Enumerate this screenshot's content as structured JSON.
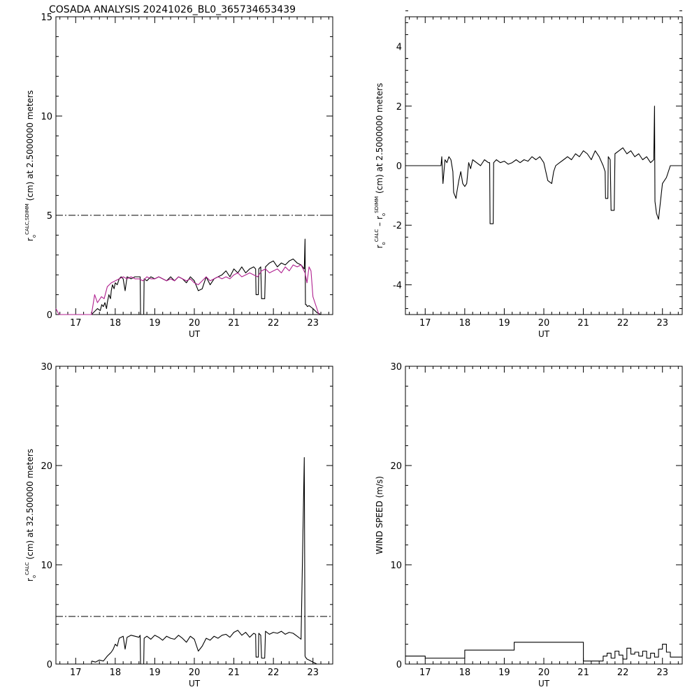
{
  "title": "COSADA ANALYSIS 20241026_BL0_365734653439",
  "chart_data": [
    {
      "type": "line",
      "panel": "top-left",
      "xlabel": "UT",
      "ylabel_parts": {
        "r": "r",
        "sub": "o",
        "sup": "CALC,SDIMM",
        "rest": " (cm)  at  2.5000000 meters"
      },
      "xlim": [
        16.5,
        23.5
      ],
      "ylim": [
        0,
        15
      ],
      "xticks": [
        "17",
        "18",
        "19",
        "20",
        "21",
        "22",
        "23"
      ],
      "yticks": [
        "0",
        "5",
        "10",
        "15"
      ],
      "reference_line": {
        "y": 5,
        "style": "dash-dot"
      },
      "series": [
        {
          "color": "#000000",
          "x": [
            17.4,
            17.55,
            17.62,
            17.66,
            17.7,
            17.74,
            17.78,
            17.8,
            17.84,
            17.88,
            17.9,
            17.93,
            17.97,
            18.0,
            18.05,
            18.1,
            18.15,
            18.2,
            18.25,
            18.3,
            18.4,
            18.5,
            18.6,
            18.63,
            18.64,
            18.72,
            18.73,
            18.8,
            18.9,
            19.0,
            19.1,
            19.2,
            19.3,
            19.4,
            19.5,
            19.6,
            19.7,
            19.8,
            19.9,
            20.0,
            20.1,
            20.2,
            20.25,
            20.3,
            20.4,
            20.5,
            20.6,
            20.7,
            20.8,
            20.9,
            21.0,
            21.1,
            21.2,
            21.3,
            21.4,
            21.5,
            21.55,
            21.56,
            21.62,
            21.63,
            21.68,
            21.7,
            21.78,
            21.8,
            21.9,
            22.0,
            22.1,
            22.2,
            22.3,
            22.4,
            22.5,
            22.6,
            22.7,
            22.78,
            22.8,
            22.81,
            22.83,
            22.86,
            22.9,
            23.0,
            23.1,
            23.2
          ],
          "y": [
            0.0,
            0.3,
            0.2,
            0.5,
            0.4,
            0.6,
            0.3,
            0.6,
            1.0,
            0.8,
            1.2,
            1.5,
            1.3,
            1.6,
            1.5,
            1.8,
            1.9,
            1.8,
            1.2,
            1.9,
            1.8,
            1.9,
            1.9,
            1.9,
            0.0,
            0.0,
            1.8,
            1.7,
            1.9,
            1.8,
            1.9,
            1.8,
            1.7,
            1.9,
            1.7,
            1.9,
            1.8,
            1.6,
            1.9,
            1.7,
            1.2,
            1.3,
            1.6,
            1.9,
            1.5,
            1.8,
            1.9,
            2.0,
            2.2,
            1.9,
            2.3,
            2.1,
            2.4,
            2.1,
            2.3,
            2.4,
            2.3,
            1.0,
            1.0,
            2.3,
            2.4,
            0.8,
            0.8,
            2.4,
            2.6,
            2.7,
            2.4,
            2.6,
            2.5,
            2.7,
            2.8,
            2.6,
            2.5,
            2.3,
            3.8,
            0.5,
            0.5,
            0.4,
            0.45,
            0.3,
            0.1,
            0.0
          ]
        },
        {
          "color": "#b0208f",
          "x": [
            16.5,
            16.58,
            17.4,
            17.48,
            17.55,
            17.65,
            17.72,
            17.8,
            17.85,
            17.9,
            18.0,
            18.1,
            18.2,
            18.3,
            18.4,
            18.5,
            18.6,
            18.7,
            18.8,
            18.9,
            19.0,
            19.1,
            19.2,
            19.3,
            19.4,
            19.5,
            19.6,
            19.7,
            19.8,
            19.9,
            20.0,
            20.1,
            20.2,
            20.3,
            20.4,
            20.5,
            20.6,
            20.7,
            20.8,
            20.9,
            21.0,
            21.1,
            21.2,
            21.3,
            21.4,
            21.5,
            21.6,
            21.7,
            21.8,
            21.9,
            22.0,
            22.1,
            22.2,
            22.3,
            22.4,
            22.5,
            22.6,
            22.7,
            22.8,
            22.85,
            22.9,
            22.95,
            23.0,
            23.05,
            23.1,
            23.15
          ],
          "y": [
            0.3,
            0.0,
            0.0,
            1.0,
            0.6,
            0.9,
            0.8,
            1.4,
            1.5,
            1.6,
            1.7,
            1.8,
            1.9,
            1.8,
            1.9,
            1.8,
            1.8,
            1.7,
            1.9,
            1.8,
            1.8,
            1.9,
            1.8,
            1.7,
            1.8,
            1.7,
            1.9,
            1.8,
            1.7,
            1.8,
            1.6,
            1.5,
            1.7,
            1.9,
            1.7,
            1.8,
            1.9,
            1.8,
            1.9,
            1.8,
            2.0,
            2.1,
            1.9,
            2.0,
            2.1,
            2.0,
            1.9,
            2.2,
            2.3,
            2.1,
            2.2,
            2.3,
            2.1,
            2.4,
            2.2,
            2.5,
            2.4,
            2.5,
            2.1,
            1.6,
            2.4,
            2.2,
            0.9,
            0.6,
            0.3,
            0.0
          ]
        }
      ]
    },
    {
      "type": "line",
      "panel": "top-right",
      "xlabel": "UT",
      "ylabel_parts": {
        "r1": "r",
        "sub1": "o",
        "sup1": "CALC",
        "mid": " – r",
        "sub2": "o",
        "sup2": "SDIMM",
        "rest": " (cm)  at  2.5000000 meters"
      },
      "xlim": [
        16.5,
        23.5
      ],
      "ylim": [
        -5,
        5
      ],
      "xticks": [
        "17",
        "18",
        "19",
        "20",
        "21",
        "22",
        "23"
      ],
      "yticks": [
        "-4",
        "-2",
        "0",
        "2",
        "4"
      ],
      "series": [
        {
          "color": "#000000",
          "x": [
            16.5,
            17.4,
            17.42,
            17.45,
            17.5,
            17.55,
            17.6,
            17.65,
            17.7,
            17.72,
            17.78,
            17.8,
            17.85,
            17.9,
            17.95,
            18.0,
            18.05,
            18.1,
            18.15,
            18.2,
            18.3,
            18.4,
            18.5,
            18.6,
            18.63,
            18.64,
            18.72,
            18.73,
            18.8,
            18.9,
            19.0,
            19.1,
            19.2,
            19.3,
            19.4,
            19.5,
            19.6,
            19.7,
            19.8,
            19.9,
            20.0,
            20.1,
            20.2,
            20.25,
            20.3,
            20.4,
            20.5,
            20.6,
            20.7,
            20.8,
            20.9,
            21.0,
            21.1,
            21.2,
            21.3,
            21.4,
            21.5,
            21.55,
            21.56,
            21.62,
            21.63,
            21.68,
            21.7,
            21.78,
            21.8,
            21.9,
            22.0,
            22.1,
            22.2,
            22.3,
            22.4,
            22.5,
            22.6,
            22.7,
            22.78,
            22.8,
            22.81,
            22.85,
            22.9,
            22.95,
            23.0,
            23.1,
            23.2,
            23.5
          ],
          "y": [
            0.0,
            0.0,
            0.3,
            -0.6,
            0.2,
            0.1,
            0.3,
            0.2,
            -0.2,
            -0.9,
            -1.1,
            -0.9,
            -0.5,
            -0.2,
            -0.6,
            -0.7,
            -0.6,
            0.1,
            -0.1,
            0.2,
            0.1,
            0.0,
            0.2,
            0.1,
            0.1,
            -1.95,
            -1.95,
            0.1,
            0.2,
            0.1,
            0.15,
            0.05,
            0.1,
            0.2,
            0.1,
            0.2,
            0.15,
            0.3,
            0.2,
            0.3,
            0.1,
            -0.5,
            -0.6,
            -0.2,
            0.0,
            0.1,
            0.2,
            0.3,
            0.2,
            0.4,
            0.3,
            0.5,
            0.4,
            0.2,
            0.5,
            0.3,
            0.0,
            -0.2,
            -1.1,
            -1.1,
            0.3,
            0.2,
            -1.5,
            -1.5,
            0.4,
            0.5,
            0.6,
            0.4,
            0.5,
            0.3,
            0.4,
            0.2,
            0.3,
            0.1,
            0.2,
            2.0,
            -1.2,
            -1.6,
            -1.8,
            -1.2,
            -0.6,
            -0.4,
            0.0,
            0.0
          ]
        }
      ]
    },
    {
      "type": "line",
      "panel": "bottom-left",
      "xlabel": "UT",
      "ylabel_parts": {
        "r": "r",
        "sub": "o",
        "sup": "CALC",
        "rest": " (cm)  at  32.500000 meters"
      },
      "xlim": [
        16.5,
        23.5
      ],
      "ylim": [
        0,
        30
      ],
      "xticks": [
        "17",
        "18",
        "19",
        "20",
        "21",
        "22",
        "23"
      ],
      "yticks": [
        "0",
        "10",
        "20",
        "30"
      ],
      "reference_line": {
        "y": 4.8,
        "style": "dash-dot"
      },
      "series": [
        {
          "color": "#000000",
          "x": [
            17.4,
            17.5,
            17.6,
            17.7,
            17.8,
            17.85,
            17.9,
            17.95,
            18.0,
            18.05,
            18.1,
            18.2,
            18.25,
            18.3,
            18.4,
            18.5,
            18.6,
            18.63,
            18.64,
            18.72,
            18.73,
            18.8,
            18.9,
            19.0,
            19.1,
            19.2,
            19.3,
            19.4,
            19.5,
            19.6,
            19.7,
            19.8,
            19.9,
            20.0,
            20.1,
            20.2,
            20.3,
            20.4,
            20.5,
            20.6,
            20.7,
            20.8,
            20.9,
            21.0,
            21.1,
            21.2,
            21.3,
            21.4,
            21.5,
            21.55,
            21.56,
            21.62,
            21.63,
            21.68,
            21.7,
            21.78,
            21.8,
            21.9,
            22.0,
            22.1,
            22.2,
            22.3,
            22.4,
            22.5,
            22.6,
            22.7,
            22.78,
            22.8,
            22.81,
            22.85,
            22.9,
            23.0,
            23.1
          ],
          "y": [
            0.3,
            0.2,
            0.4,
            0.3,
            0.8,
            1.0,
            1.2,
            1.5,
            2.0,
            1.8,
            2.6,
            2.8,
            1.5,
            2.7,
            2.9,
            2.8,
            2.7,
            2.9,
            0.0,
            0.0,
            2.6,
            2.8,
            2.5,
            2.9,
            2.7,
            2.4,
            2.8,
            2.6,
            2.5,
            2.9,
            2.6,
            2.2,
            2.8,
            2.5,
            1.3,
            1.8,
            2.6,
            2.4,
            2.8,
            2.6,
            2.9,
            3.0,
            2.7,
            3.2,
            3.4,
            2.9,
            3.2,
            2.7,
            3.1,
            3.0,
            0.7,
            0.7,
            3.1,
            2.9,
            0.6,
            0.6,
            3.3,
            3.0,
            3.2,
            3.1,
            3.3,
            3.0,
            3.2,
            3.1,
            2.8,
            2.5,
            20.8,
            0.8,
            0.7,
            0.5,
            0.4,
            0.2,
            0.0
          ]
        }
      ]
    },
    {
      "type": "line",
      "panel": "bottom-right",
      "xlabel": "UT",
      "ylabel": "WIND SPEED  (m/s)",
      "xlim": [
        16.5,
        23.5
      ],
      "ylim": [
        0,
        30
      ],
      "xticks": [
        "17",
        "18",
        "19",
        "20",
        "21",
        "22",
        "23"
      ],
      "yticks": [
        "0",
        "10",
        "20",
        "30"
      ],
      "series": [
        {
          "color": "#000000",
          "step": true,
          "x": [
            16.5,
            17.0,
            18.0,
            19.25,
            21.0,
            21.5,
            21.6,
            21.7,
            21.8,
            21.9,
            22.0,
            22.1,
            22.2,
            22.3,
            22.4,
            22.5,
            22.6,
            22.7,
            22.8,
            22.9,
            23.0,
            23.1,
            23.2,
            23.5
          ],
          "y": [
            0.8,
            0.6,
            1.4,
            2.2,
            0.3,
            0.8,
            1.1,
            0.6,
            1.3,
            0.9,
            0.5,
            1.6,
            1.0,
            1.2,
            0.8,
            1.3,
            0.6,
            1.1,
            0.7,
            1.5,
            2.0,
            1.2,
            0.7,
            0.7
          ]
        }
      ]
    }
  ]
}
